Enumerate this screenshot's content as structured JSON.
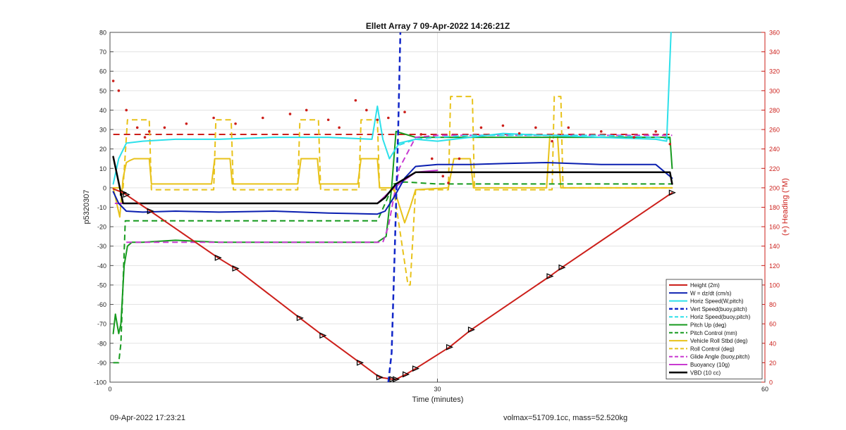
{
  "chart_data": {
    "type": "line",
    "title": "Ellett Array 7 09-Apr-2022 14:26:21Z",
    "xlabel": "Time (minutes)",
    "ylabel": "p5320307",
    "y2label": "(+) Heading (°M)",
    "xlim": [
      0,
      60
    ],
    "ylim": [
      -100,
      80
    ],
    "y2lim": [
      0,
      360
    ],
    "xticks": [
      0,
      30,
      60
    ],
    "yticks": [
      -100,
      -90,
      -80,
      -70,
      -60,
      -50,
      -40,
      -30,
      -20,
      -10,
      0,
      10,
      20,
      30,
      40,
      50,
      60,
      70,
      80
    ],
    "y2ticks": [
      0,
      20,
      40,
      60,
      80,
      100,
      120,
      140,
      160,
      180,
      200,
      220,
      240,
      260,
      280,
      300,
      320,
      340,
      360
    ],
    "grid": true,
    "legend_position": "bottom-right",
    "series": [
      {
        "name": "Height (2m)",
        "color": "#cc1f1a",
        "style": "solid",
        "width": 2,
        "x": [
          0.3,
          1.2,
          3.7,
          9.9,
          11.5,
          17.4,
          19.5,
          22.9,
          24.7,
          25.9,
          26.2,
          27.1,
          28.0,
          31.1,
          33.1,
          40.3,
          41.4,
          51.5
        ],
        "y": [
          -0.5,
          -2.5,
          -12,
          -36,
          -41.5,
          -67,
          -76,
          -90,
          -97.5,
          -98.5,
          -98.5,
          -96,
          -93,
          -82,
          -73,
          -45.5,
          -41,
          -2.5
        ]
      },
      {
        "name": "W = dz/dt (cm/s)",
        "color": "#0a1fb0",
        "style": "solid",
        "width": 2,
        "x": [
          0.3,
          0.8,
          1.5,
          3.0,
          6.0,
          10.0,
          15.0,
          20.0,
          24.5,
          25.2,
          26.0,
          27.0,
          28.0,
          30.0,
          33.0,
          36.0,
          40.0,
          45.0,
          50.0,
          51.5
        ],
        "y": [
          -2,
          -8,
          -12,
          -12.5,
          -12,
          -12.5,
          -12,
          -13,
          -13.5,
          -12,
          -5,
          5,
          11,
          12,
          12,
          12.5,
          13,
          12,
          12,
          5
        ]
      },
      {
        "name": "Horiz Speed(W,pitch)",
        "color": "#2de0ea",
        "style": "solid",
        "width": 2,
        "x": [
          0.3,
          0.8,
          1.5,
          3.0,
          6.0,
          10.0,
          15.0,
          20.0,
          24.0,
          24.5,
          25.0,
          25.6,
          26.5,
          28.0,
          30.0,
          33.0,
          36.0,
          40.0,
          45.0,
          50.0,
          51.0,
          51.4
        ],
        "y": [
          2,
          15,
          23,
          24,
          25,
          25,
          26,
          26,
          25,
          42,
          25,
          15,
          23,
          25,
          24,
          26,
          28,
          27,
          26,
          25,
          24,
          80
        ]
      },
      {
        "name": "Vert Speed(buoy,pitch)",
        "color": "#1126c8",
        "style": "dashed",
        "width": 2.5,
        "x": [
          25.5,
          25.8,
          26.1,
          26.4,
          26.6
        ],
        "y": [
          -100,
          -85,
          -30,
          30,
          80
        ]
      },
      {
        "name": "Horiz Speed(buoy,pitch)",
        "color": "#2de0ea",
        "style": "dashed",
        "width": 2,
        "x": [
          26.5,
          28.0,
          30.0,
          33.0,
          36.0,
          40.0,
          45.0,
          50.0,
          51.5
        ],
        "y": [
          22,
          25,
          26,
          27,
          27,
          27,
          27,
          26,
          25
        ]
      },
      {
        "name": "Pitch Up (deg)",
        "color": "#169a1e",
        "style": "solid",
        "width": 2,
        "x": [
          0.3,
          0.5,
          0.8,
          1.0,
          1.3,
          1.6,
          2.0,
          3.0,
          6.0,
          10.0,
          15.0,
          20.0,
          24.5,
          25.3,
          25.8,
          26.2,
          28.0,
          30.0,
          33.0,
          36.0,
          40.0,
          45.0,
          50.0,
          51.3,
          51.5
        ],
        "y": [
          -75,
          -65,
          -75,
          -70,
          -40,
          -30,
          -28,
          -28,
          -27,
          -28,
          -28,
          -28,
          -28,
          -25,
          0,
          29,
          26,
          26,
          26,
          26,
          26,
          26,
          26,
          26,
          10
        ]
      },
      {
        "name": "Pitch Control (mm)",
        "color": "#169a1e",
        "style": "dashed",
        "width": 2,
        "x": [
          0.3,
          0.8,
          1.0,
          1.4,
          3.0,
          10.0,
          20.0,
          24.5,
          26.0,
          27.0,
          30.0,
          40.0,
          50.0,
          51.5
        ],
        "y": [
          -90,
          -90,
          -80,
          -17,
          -17,
          -17,
          -17,
          -17,
          2,
          3,
          2,
          2,
          2,
          2
        ]
      },
      {
        "name": "Vehicle Roll Stbd (deg)",
        "color": "#e8c21a",
        "style": "solid",
        "width": 2,
        "x": [
          0.3,
          0.9,
          1.2,
          1.5,
          1.8,
          2.2,
          3.0,
          3.6,
          3.8,
          7.0,
          9.3,
          9.6,
          11.0,
          11.2,
          17.2,
          17.5,
          19.0,
          19.2,
          22.7,
          23.0,
          24.5,
          24.7,
          25.0,
          26.0,
          27.0,
          27.5,
          28.0,
          31.0,
          31.5,
          32.5,
          33.0,
          33.3,
          40.0,
          40.3,
          41.0,
          41.3,
          50.0,
          51.5
        ],
        "y": [
          0,
          -15,
          5,
          13,
          14,
          15,
          15,
          15,
          2,
          2,
          2,
          15,
          15,
          2,
          2,
          15,
          15,
          2,
          2,
          15,
          15,
          0,
          0,
          0,
          -18,
          -10,
          -1,
          0,
          15,
          15,
          15,
          0,
          0,
          27,
          27,
          0,
          0,
          0
        ]
      },
      {
        "name": "Roll Control (deg)",
        "color": "#e8c21a",
        "style": "dashed",
        "width": 2,
        "x": [
          0.3,
          1.2,
          1.6,
          3.6,
          3.8,
          9.5,
          9.7,
          11.1,
          11.3,
          17.2,
          17.4,
          19.1,
          19.3,
          22.8,
          23.0,
          24.5,
          24.7,
          26.0,
          27.3,
          27.5,
          28.0,
          28.4,
          31.0,
          31.2,
          33.2,
          33.4,
          40.5,
          40.7,
          41.3,
          41.5,
          51.5
        ],
        "y": [
          0,
          0,
          35,
          35,
          -1,
          -1,
          35,
          35,
          -1,
          -1,
          35,
          35,
          -1,
          -1,
          35,
          35,
          -1,
          -1,
          -50,
          -50,
          -1,
          -1,
          -1,
          47,
          47,
          -1,
          -1,
          47,
          47,
          0,
          0
        ]
      },
      {
        "name": "Glide Angle (buoy,pitch)",
        "color": "#c83ad1",
        "style": "dashed",
        "width": 2,
        "x": [
          1.5,
          3.0,
          10.0,
          20.0,
          24.5,
          25.0,
          25.5,
          26.5,
          28.0,
          30.0,
          40.0,
          50.0,
          51.5
        ],
        "y": [
          -28,
          -28,
          -28,
          -28,
          -28,
          -28,
          -20,
          10,
          26,
          27,
          27,
          27,
          27
        ]
      },
      {
        "name": "Buoyancy (10g)",
        "color": "#c83ad1",
        "style": "solid",
        "width": 2,
        "x": [
          0.5,
          1.0,
          3.0,
          10.0,
          20.0,
          24.5,
          26.0,
          28.0,
          30.0
        ],
        "y": [
          -8,
          -8,
          -8,
          -8,
          -8,
          -8,
          0,
          8,
          9
        ]
      },
      {
        "name": "VBD (10 cc)",
        "color": "#000000",
        "style": "solid",
        "width": 2.5,
        "x": [
          0.3,
          1.2,
          3.0,
          10.0,
          20.0,
          24.5,
          25.2,
          26.2,
          28.0,
          30.0,
          40.0,
          50.0,
          51.3,
          51.5
        ],
        "y": [
          16,
          -8,
          -8,
          -8,
          -8,
          -8,
          -5,
          2,
          8,
          8,
          8,
          8,
          8,
          2
        ]
      }
    ],
    "heading_reference": {
      "color": "#cc1f1a",
      "style": "dashed",
      "axis": "right",
      "value": 255
    },
    "heading_points": {
      "color": "#cc1f1a",
      "axis": "right",
      "x": [
        0.3,
        0.8,
        1.5,
        2.5,
        3.2,
        3.6,
        5.0,
        7.0,
        9.5,
        11.5,
        14.0,
        16.5,
        18.0,
        20.0,
        21.0,
        22.5,
        23.5,
        24.5,
        25.5,
        27.0,
        28.5,
        29.5,
        30.5,
        31.0,
        32.0,
        34.0,
        36.0,
        37.5,
        39.0,
        40.5,
        42.0,
        45.0,
        48.0,
        50.0,
        51.3
      ],
      "y": [
        310,
        300,
        280,
        262,
        252,
        258,
        262,
        266,
        272,
        266,
        272,
        276,
        280,
        270,
        262,
        290,
        280,
        270,
        272,
        278,
        255,
        230,
        212,
        205,
        230,
        262,
        264,
        256,
        262,
        248,
        262,
        258,
        252,
        258,
        245
      ]
    },
    "markers": {
      "color": "#000000",
      "on_series": "Height (2m)",
      "x": [
        1.2,
        1.5,
        3.7,
        9.9,
        11.5,
        17.4,
        19.5,
        22.9,
        24.7,
        25.9,
        26.2,
        27.1,
        28.0,
        31.1,
        33.1,
        40.3,
        41.4,
        51.5
      ],
      "y": [
        -2.5,
        -3.5,
        -12,
        -36,
        -41.5,
        -67,
        -76,
        -90,
        -97.5,
        -98.5,
        -98.5,
        -96,
        -93,
        -82,
        -73,
        -45.5,
        -41,
        -2.5
      ]
    }
  },
  "footer": {
    "timestamp": "09-Apr-2022 17:23:21",
    "info": "volmax=51709.1cc, mass=52.520kg"
  }
}
